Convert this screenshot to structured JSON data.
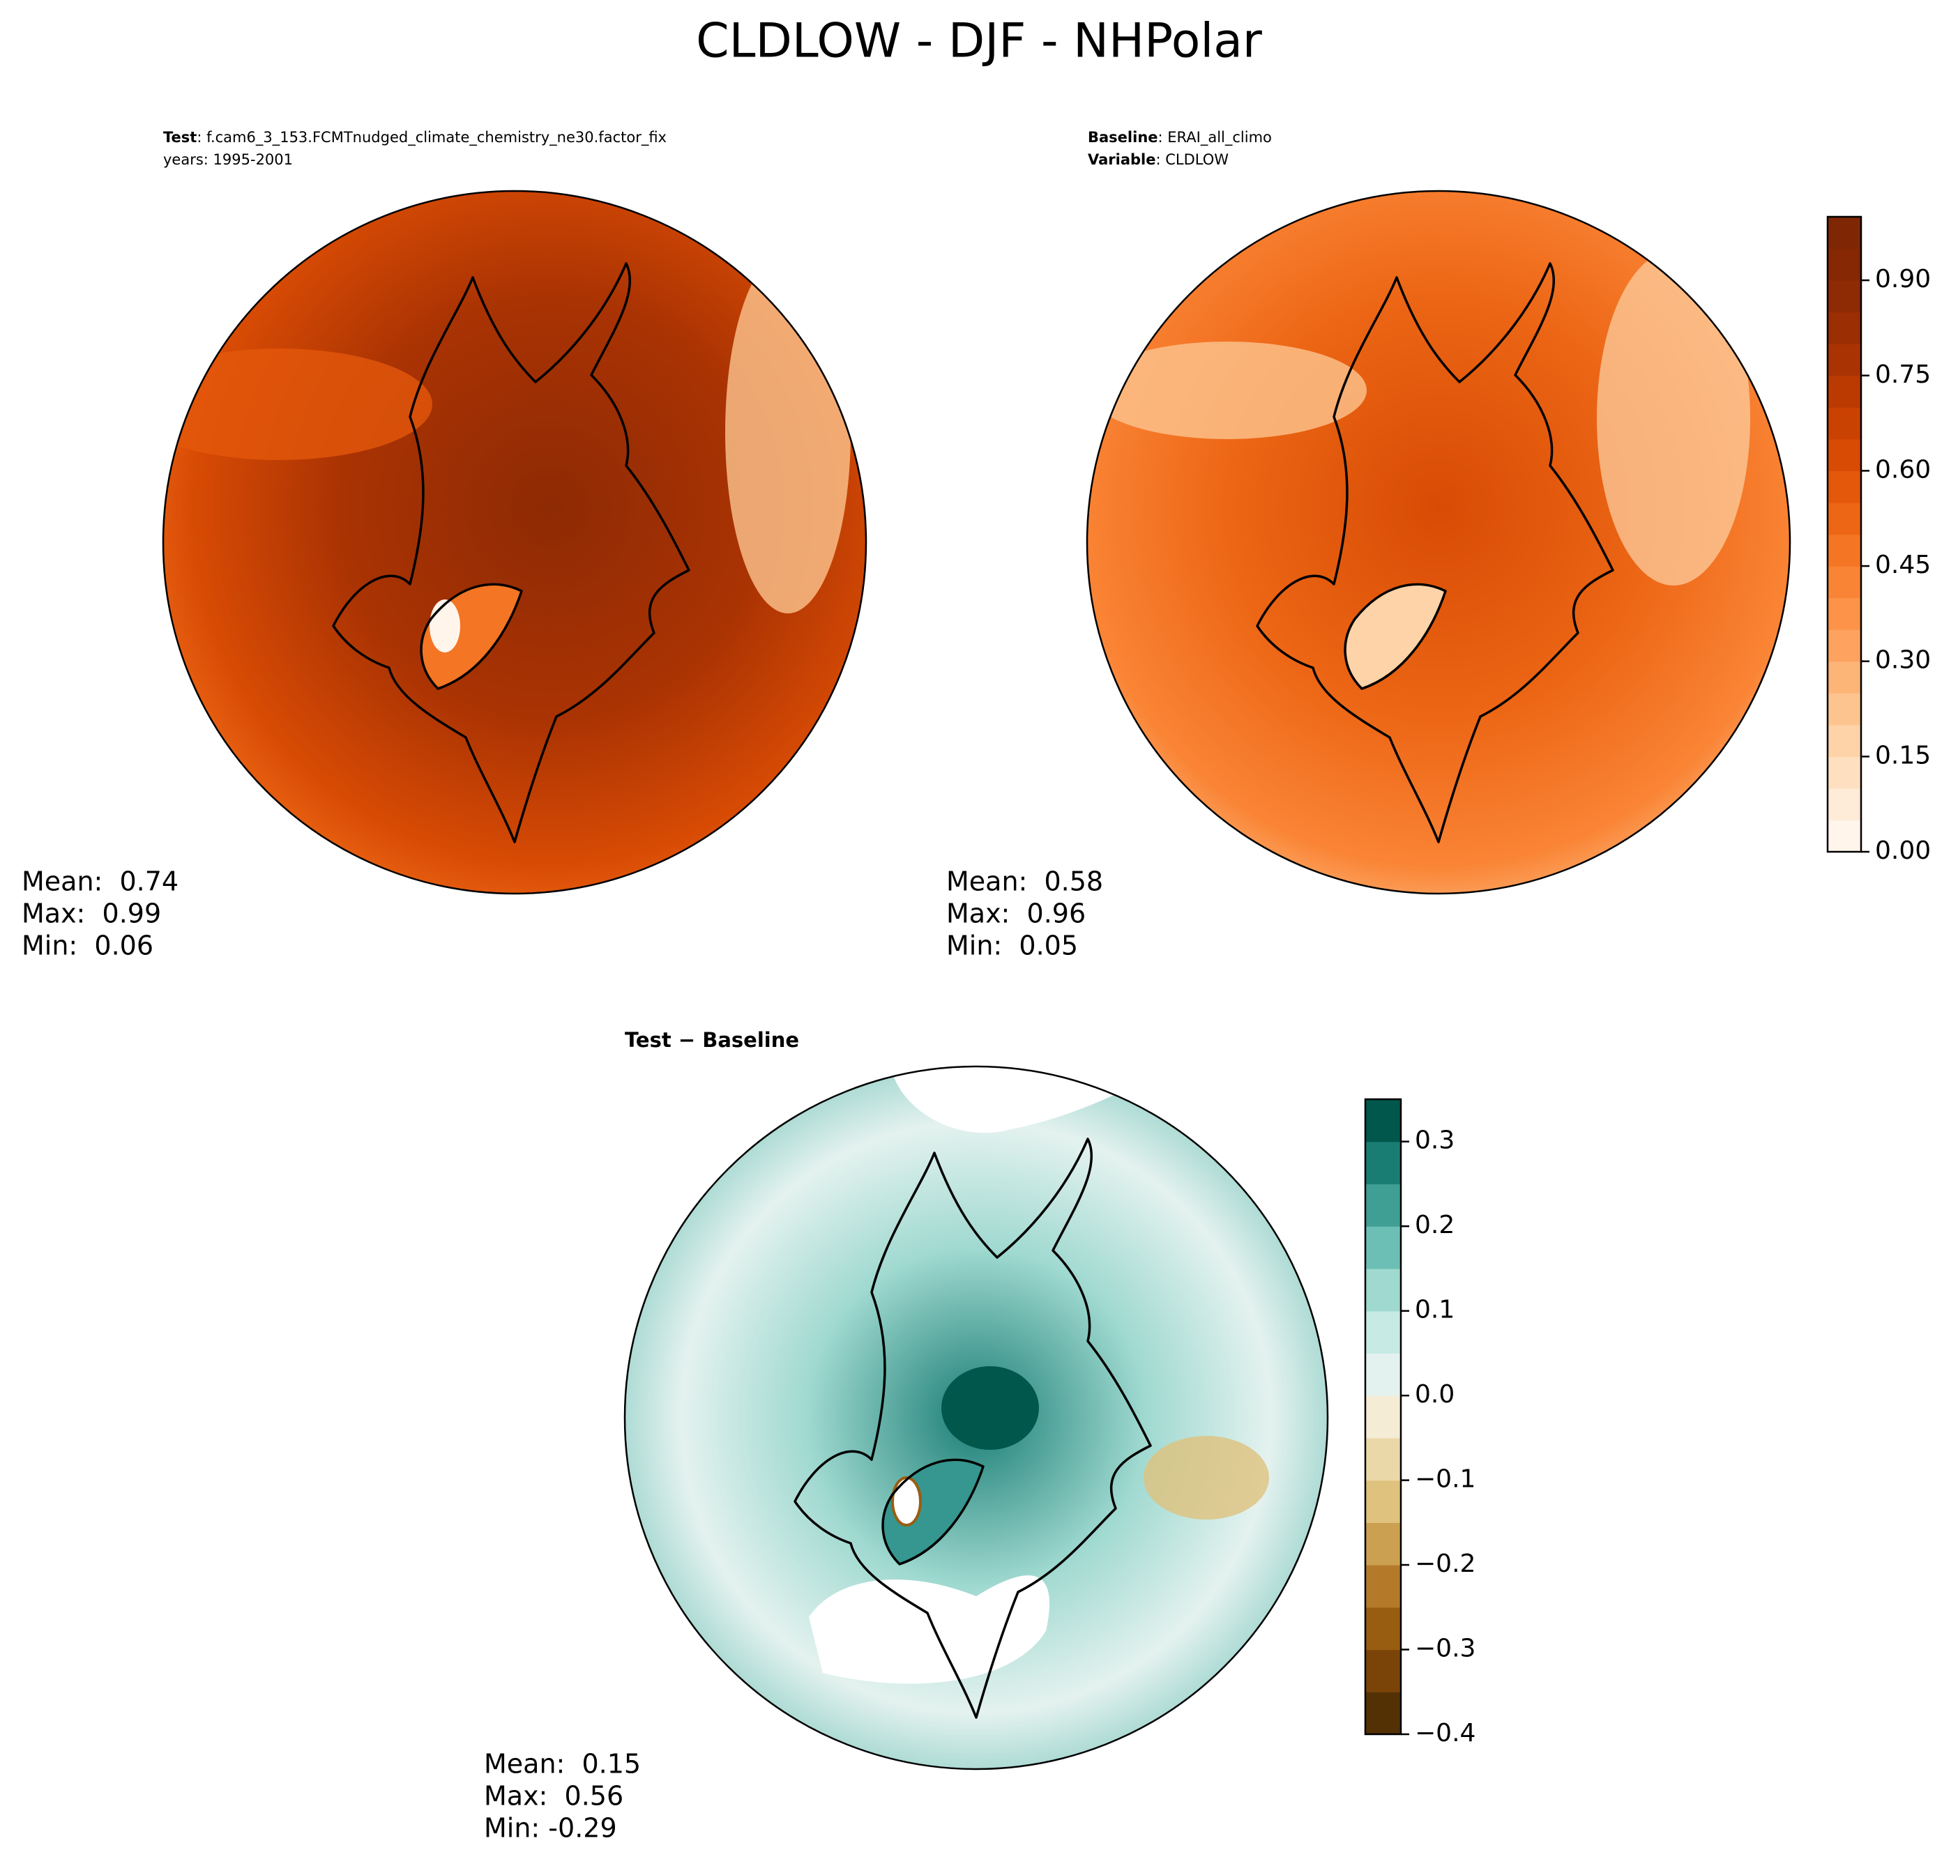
{
  "title": "CLDLOW - DJF - NHPolar",
  "panels": [
    {
      "header": [
        [
          "Test",
          ": f.cam6_3_153.FCMTnudged_climate_chemistry_ne30.factor_fix"
        ],
        [
          "years: 1995-2001"
        ]
      ],
      "stats": [
        "Mean:  0.74",
        "Max:  0.99",
        "Min:  0.06"
      ]
    },
    {
      "header": [
        [
          "Baseline",
          ": ERAI_all_climo"
        ],
        [
          "Variable",
          ": CLDLOW"
        ]
      ],
      "stats": [
        "Mean:  0.58",
        "Max:  0.96",
        "Min:  0.05"
      ]
    },
    {
      "header": [
        [
          "Test − Baseline"
        ]
      ],
      "stats": [
        "Mean:  0.15",
        "Max:  0.56",
        "Min: -0.29"
      ]
    }
  ],
  "colorbars": [
    {
      "lim": [
        0,
        1.0
      ],
      "ticks": [
        {
          "value": 0,
          "label": "0.00"
        },
        0.15,
        {
          "value": 0.3,
          "label": "0.30"
        },
        0.45,
        {
          "value": 0.6,
          "label": "0.60"
        },
        0.75,
        {
          "value": 0.9,
          "label": "0.90"
        }
      ],
      "colors": [
        "#fff5eb",
        "#feebd8",
        "#fee0c1",
        "#fdd3a7",
        "#fdc48f",
        "#fdb477",
        "#fda35f",
        "#fd9349",
        "#fa8435",
        "#f47524",
        "#ec6615",
        "#e3580b",
        "#d84b04",
        "#ca4202",
        "#ba3a02",
        "#aa3303",
        "#9b2e03",
        "#8e2a04",
        "#862804",
        "#7f2704"
      ]
    },
    {
      "lim": [
        -0.4,
        0.35
      ],
      "ticks": [
        {
          "value": -0.4,
          "label": "−0.4"
        },
        {
          "value": -0.3,
          "label": "−0.3"
        },
        {
          "value": -0.2,
          "label": "−0.2"
        },
        {
          "value": -0.1,
          "label": "−0.1"
        },
        {
          "value": 0,
          "label": "0.0"
        },
        0.1,
        0.2,
        0.3
      ],
      "colors": [
        "#543005",
        "#7a4409",
        "#995d12",
        "#b47a2a",
        "#cba050",
        "#dfc27d",
        "#ebd8a8",
        "#f5ecd6",
        "#e4f2ef",
        "#c7eae5",
        "#9fd9d0",
        "#6cbfb4",
        "#3f9f95",
        "#1a7d74",
        "#01574b"
      ]
    }
  ]
}
